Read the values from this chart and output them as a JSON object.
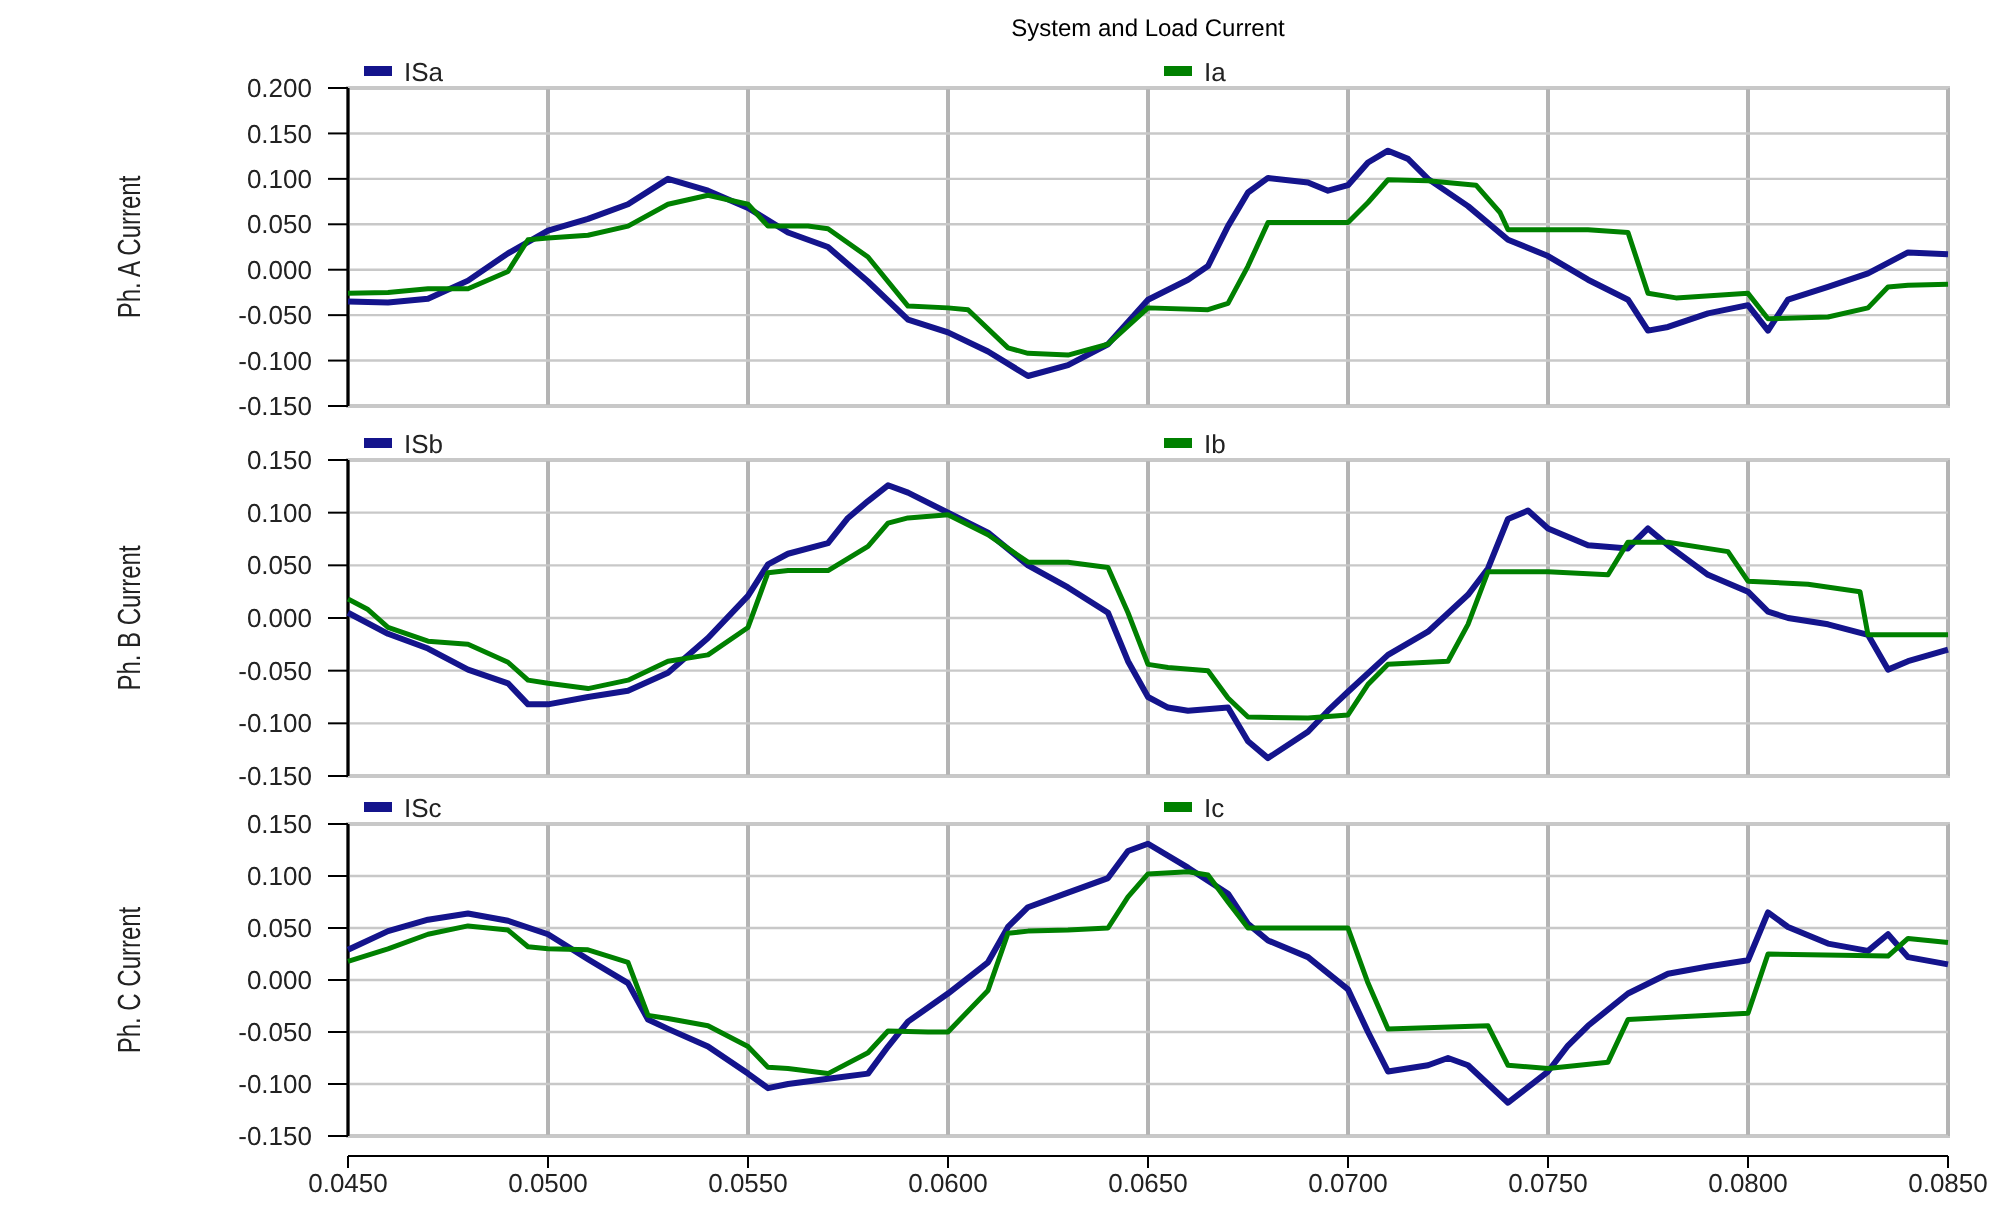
{
  "chart_data": [
    {
      "type": "line",
      "title": "System  and Load Current",
      "ylabel": "Ph. A Current",
      "legend": "top",
      "grid": true,
      "marker": "none",
      "line_style": "solid",
      "tick_labels": "y",
      "xlim": [
        0.045,
        0.085
      ],
      "xticks": [
        {
          "value": 0.045,
          "label": null
        },
        {
          "value": 0.05,
          "label": null
        },
        {
          "value": 0.055,
          "label": null
        },
        {
          "value": 0.06,
          "label": null
        },
        {
          "value": 0.065,
          "label": null
        },
        {
          "value": 0.07,
          "label": null
        },
        {
          "value": 0.075,
          "label": null
        },
        {
          "value": 0.08,
          "label": null
        },
        {
          "value": 0.085,
          "label": null
        }
      ],
      "ylim": [
        -0.15,
        0.2
      ],
      "yticks": [
        {
          "value": -0.15,
          "label": "-0.150"
        },
        {
          "value": -0.1,
          "label": "-0.100"
        },
        {
          "value": -0.05,
          "label": "-0.050"
        },
        {
          "value": 0,
          "label": "0.000"
        },
        {
          "value": 0.05,
          "label": "0.050"
        },
        {
          "value": 0.1,
          "label": "0.100"
        },
        {
          "value": 0.15,
          "label": "0.150"
        },
        {
          "value": 0.2,
          "label": "0.200"
        }
      ],
      "series": [
        {
          "name": "ISa",
          "color": "#14148c",
          "x": [
            0.045,
            0.046,
            0.047,
            0.048,
            0.049,
            0.05,
            0.051,
            0.052,
            0.053,
            0.054,
            0.055,
            0.056,
            0.057,
            0.058,
            0.059,
            0.06,
            0.061,
            0.062,
            0.063,
            0.064,
            0.065,
            0.066,
            0.0665,
            0.067,
            0.0675,
            0.068,
            0.069,
            0.0695,
            0.07,
            0.0705,
            0.071,
            0.0715,
            0.072,
            0.073,
            0.074,
            0.075,
            0.076,
            0.077,
            0.0775,
            0.078,
            0.079,
            0.08,
            0.0805,
            0.081,
            0.082,
            0.083,
            0.084,
            0.085
          ],
          "values": [
            -0.035,
            -0.036,
            -0.032,
            -0.012,
            0.018,
            0.043,
            0.056,
            0.072,
            0.1,
            0.087,
            0.068,
            0.041,
            0.025,
            -0.013,
            -0.055,
            -0.069,
            -0.09,
            -0.117,
            -0.105,
            -0.082,
            -0.033,
            -0.011,
            0.004,
            0.048,
            0.085,
            0.101,
            0.096,
            0.087,
            0.093,
            0.118,
            0.131,
            0.122,
            0.1,
            0.07,
            0.033,
            0.015,
            -0.011,
            -0.033,
            -0.067,
            -0.063,
            -0.048,
            -0.039,
            -0.067,
            -0.033,
            -0.019,
            -0.004,
            0.019,
            0.017
          ]
        },
        {
          "name": "Ia",
          "color": "#008000",
          "x": [
            0.045,
            0.046,
            0.047,
            0.048,
            0.049,
            0.0495,
            0.05,
            0.051,
            0.052,
            0.053,
            0.054,
            0.055,
            0.0555,
            0.0565,
            0.057,
            0.058,
            0.059,
            0.06,
            0.0605,
            0.0615,
            0.062,
            0.063,
            0.064,
            0.065,
            0.0665,
            0.067,
            0.0675,
            0.068,
            0.069,
            0.07,
            0.0705,
            0.071,
            0.072,
            0.0732,
            0.0738,
            0.074,
            0.076,
            0.077,
            0.0775,
            0.0782,
            0.08,
            0.0805,
            0.082,
            0.083,
            0.0835,
            0.084,
            0.085
          ],
          "values": [
            -0.026,
            -0.025,
            -0.021,
            -0.021,
            -0.002,
            0.033,
            0.035,
            0.038,
            0.048,
            0.072,
            0.082,
            0.072,
            0.048,
            0.048,
            0.045,
            0.014,
            -0.04,
            -0.042,
            -0.044,
            -0.086,
            -0.092,
            -0.094,
            -0.082,
            -0.042,
            -0.044,
            -0.037,
            0.004,
            0.052,
            0.052,
            0.052,
            0.074,
            0.099,
            0.098,
            0.093,
            0.063,
            0.044,
            0.044,
            0.041,
            -0.026,
            -0.031,
            -0.026,
            -0.054,
            -0.052,
            -0.042,
            -0.019,
            -0.017,
            -0.016
          ]
        }
      ]
    },
    {
      "type": "line",
      "ylabel": "Ph. B Current",
      "legend": "top",
      "grid": true,
      "marker": "none",
      "line_style": "solid",
      "tick_labels": "y",
      "xlim": [
        0.045,
        0.085
      ],
      "xticks": [
        {
          "value": 0.045,
          "label": null
        },
        {
          "value": 0.05,
          "label": null
        },
        {
          "value": 0.055,
          "label": null
        },
        {
          "value": 0.06,
          "label": null
        },
        {
          "value": 0.065,
          "label": null
        },
        {
          "value": 0.07,
          "label": null
        },
        {
          "value": 0.075,
          "label": null
        },
        {
          "value": 0.08,
          "label": null
        },
        {
          "value": 0.085,
          "label": null
        }
      ],
      "ylim": [
        -0.15,
        0.15
      ],
      "yticks": [
        {
          "value": -0.15,
          "label": "-0.150"
        },
        {
          "value": -0.1,
          "label": "-0.100"
        },
        {
          "value": -0.05,
          "label": "-0.050"
        },
        {
          "value": 0,
          "label": "0.000"
        },
        {
          "value": 0.05,
          "label": "0.050"
        },
        {
          "value": 0.1,
          "label": "0.100"
        },
        {
          "value": 0.15,
          "label": "0.150"
        }
      ],
      "series": [
        {
          "name": "ISb",
          "color": "#14148c",
          "x": [
            0.045,
            0.046,
            0.047,
            0.048,
            0.049,
            0.0495,
            0.05,
            0.051,
            0.052,
            0.053,
            0.054,
            0.055,
            0.0555,
            0.056,
            0.057,
            0.0575,
            0.058,
            0.0585,
            0.059,
            0.06,
            0.061,
            0.062,
            0.063,
            0.064,
            0.0645,
            0.065,
            0.0655,
            0.066,
            0.067,
            0.0675,
            0.068,
            0.069,
            0.0695,
            0.07,
            0.071,
            0.072,
            0.073,
            0.0735,
            0.074,
            0.0745,
            0.075,
            0.076,
            0.077,
            0.0775,
            0.078,
            0.079,
            0.08,
            0.0805,
            0.081,
            0.082,
            0.083,
            0.0835,
            0.084,
            0.085
          ],
          "values": [
            0.005,
            -0.015,
            -0.029,
            -0.049,
            -0.062,
            -0.082,
            -0.082,
            -0.075,
            -0.069,
            -0.052,
            -0.019,
            0.021,
            0.051,
            0.061,
            0.071,
            0.095,
            0.111,
            0.126,
            0.119,
            0.1,
            0.081,
            0.05,
            0.029,
            0.005,
            -0.041,
            -0.075,
            -0.085,
            -0.088,
            -0.085,
            -0.117,
            -0.133,
            -0.108,
            -0.088,
            -0.07,
            -0.035,
            -0.013,
            0.022,
            0.047,
            0.094,
            0.102,
            0.085,
            0.069,
            0.066,
            0.085,
            0.069,
            0.041,
            0.025,
            0.006,
            0,
            -0.006,
            -0.016,
            -0.049,
            -0.041,
            -0.03
          ]
        },
        {
          "name": "Ib",
          "color": "#008000",
          "x": [
            0.045,
            0.0455,
            0.046,
            0.047,
            0.048,
            0.049,
            0.0495,
            0.05,
            0.051,
            0.052,
            0.053,
            0.054,
            0.055,
            0.0555,
            0.056,
            0.057,
            0.058,
            0.0585,
            0.059,
            0.06,
            0.061,
            0.062,
            0.063,
            0.064,
            0.0645,
            0.065,
            0.0655,
            0.0665,
            0.067,
            0.0675,
            0.069,
            0.07,
            0.0705,
            0.071,
            0.0725,
            0.073,
            0.0735,
            0.075,
            0.0765,
            0.077,
            0.078,
            0.0795,
            0.08,
            0.0815,
            0.0828,
            0.083,
            0.085
          ],
          "values": [
            0.018,
            0.008,
            -0.009,
            -0.022,
            -0.025,
            -0.042,
            -0.059,
            -0.062,
            -0.067,
            -0.059,
            -0.041,
            -0.035,
            -0.009,
            0.043,
            0.045,
            0.045,
            0.068,
            0.09,
            0.095,
            0.098,
            0.079,
            0.053,
            0.053,
            0.048,
            0.005,
            -0.044,
            -0.047,
            -0.05,
            -0.076,
            -0.094,
            -0.095,
            -0.092,
            -0.063,
            -0.044,
            -0.041,
            -0.006,
            0.044,
            0.044,
            0.041,
            0.072,
            0.072,
            0.063,
            0.035,
            0.032,
            0.025,
            -0.016,
            -0.016
          ]
        }
      ]
    },
    {
      "type": "line",
      "ylabel": "Ph. C Current",
      "legend": "top",
      "grid": true,
      "marker": "none",
      "line_style": "solid",
      "xlim": [
        0.045,
        0.085
      ],
      "xticks": [
        {
          "value": 0.045,
          "label": "0.0450"
        },
        {
          "value": 0.05,
          "label": "0.0500"
        },
        {
          "value": 0.055,
          "label": "0.0550"
        },
        {
          "value": 0.06,
          "label": "0.0600"
        },
        {
          "value": 0.065,
          "label": "0.0650"
        },
        {
          "value": 0.07,
          "label": "0.0700"
        },
        {
          "value": 0.075,
          "label": "0.0750"
        },
        {
          "value": 0.08,
          "label": "0.0800"
        },
        {
          "value": 0.085,
          "label": "0.0850"
        }
      ],
      "ylim": [
        -0.15,
        0.15
      ],
      "yticks": [
        {
          "value": -0.15,
          "label": "-0.150"
        },
        {
          "value": -0.1,
          "label": "-0.100"
        },
        {
          "value": -0.05,
          "label": "-0.050"
        },
        {
          "value": 0,
          "label": "0.000"
        },
        {
          "value": 0.05,
          "label": "0.050"
        },
        {
          "value": 0.1,
          "label": "0.100"
        },
        {
          "value": 0.15,
          "label": "0.150"
        }
      ],
      "series": [
        {
          "name": "ISc",
          "color": "#14148c",
          "x": [
            0.045,
            0.046,
            0.047,
            0.048,
            0.049,
            0.05,
            0.051,
            0.052,
            0.0525,
            0.053,
            0.054,
            0.055,
            0.0555,
            0.056,
            0.057,
            0.058,
            0.0585,
            0.059,
            0.06,
            0.061,
            0.0615,
            0.062,
            0.063,
            0.064,
            0.0645,
            0.065,
            0.066,
            0.067,
            0.0675,
            0.068,
            0.069,
            0.07,
            0.0705,
            0.071,
            0.072,
            0.0725,
            0.073,
            0.074,
            0.075,
            0.0755,
            0.076,
            0.077,
            0.078,
            0.079,
            0.08,
            0.0805,
            0.081,
            0.082,
            0.083,
            0.0835,
            0.084,
            0.085
          ],
          "values": [
            0.029,
            0.047,
            0.058,
            0.064,
            0.057,
            0.044,
            0.02,
            -0.003,
            -0.038,
            -0.047,
            -0.064,
            -0.09,
            -0.104,
            -0.1,
            -0.095,
            -0.09,
            -0.064,
            -0.04,
            -0.013,
            0.017,
            0.051,
            0.07,
            0.084,
            0.098,
            0.124,
            0.131,
            0.108,
            0.083,
            0.054,
            0.038,
            0.022,
            -0.009,
            -0.05,
            -0.088,
            -0.082,
            -0.075,
            -0.082,
            -0.118,
            -0.088,
            -0.063,
            -0.044,
            -0.013,
            0.006,
            0.013,
            0.019,
            0.065,
            0.051,
            0.035,
            0.028,
            0.044,
            0.022,
            0.015
          ]
        },
        {
          "name": "Ic",
          "color": "#008000",
          "x": [
            0.045,
            0.046,
            0.047,
            0.048,
            0.049,
            0.0495,
            0.05,
            0.051,
            0.052,
            0.0525,
            0.053,
            0.054,
            0.055,
            0.0555,
            0.056,
            0.057,
            0.058,
            0.0585,
            0.0595,
            0.06,
            0.061,
            0.0615,
            0.062,
            0.063,
            0.064,
            0.0645,
            0.065,
            0.066,
            0.0665,
            0.067,
            0.0675,
            0.07,
            0.0705,
            0.071,
            0.0735,
            0.074,
            0.075,
            0.0765,
            0.077,
            0.08,
            0.0805,
            0.0835,
            0.084,
            0.085
          ],
          "values": [
            0.018,
            0.03,
            0.044,
            0.052,
            0.048,
            0.032,
            0.03,
            0.029,
            0.017,
            -0.034,
            -0.037,
            -0.044,
            -0.064,
            -0.084,
            -0.085,
            -0.09,
            -0.07,
            -0.049,
            -0.05,
            -0.05,
            -0.01,
            0.045,
            0.047,
            0.048,
            0.05,
            0.08,
            0.102,
            0.104,
            0.101,
            0.075,
            0.05,
            0.05,
            -0.003,
            -0.047,
            -0.044,
            -0.082,
            -0.085,
            -0.079,
            -0.038,
            -0.032,
            0.025,
            0.023,
            0.04,
            0.036
          ]
        }
      ]
    }
  ]
}
